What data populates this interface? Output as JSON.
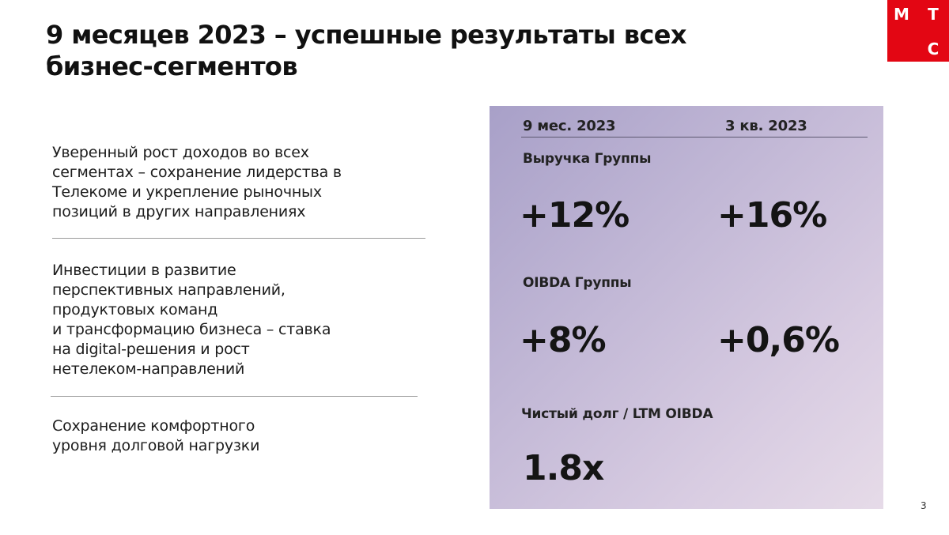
{
  "title": "9 месяцев 2023 – успешные результаты всех\nбизнес-сегментов",
  "logo": {
    "letters": [
      "М",
      "Т",
      "С"
    ],
    "color": "#e30613"
  },
  "points": [
    "Уверенный рост доходов во всех\nсегментах – сохранение лидерства в\nТелекоме и укрепление рыночных\nпозиций в других направлениях",
    "Инвестиции в развитие\nперспективных направлений,\nпродуктовых команд\nи трансформацию бизнеса – ставка\nна digital-решения и рост\nнетелеком-направлений",
    "Сохранение комфортного\nуровня долговой нагрузки"
  ],
  "panel": {
    "columns": [
      "9 мес. 2023",
      "3 кв. 2023"
    ],
    "metrics": [
      {
        "label": "Выручка Группы",
        "values": [
          "+12%",
          "+16%"
        ]
      },
      {
        "label": "OIBDA Группы",
        "values": [
          "+8%",
          "+0,6%"
        ]
      },
      {
        "label": "Чистый долг / LTM OIBDA",
        "values": [
          "1.8x"
        ]
      }
    ]
  },
  "page_number": "3"
}
